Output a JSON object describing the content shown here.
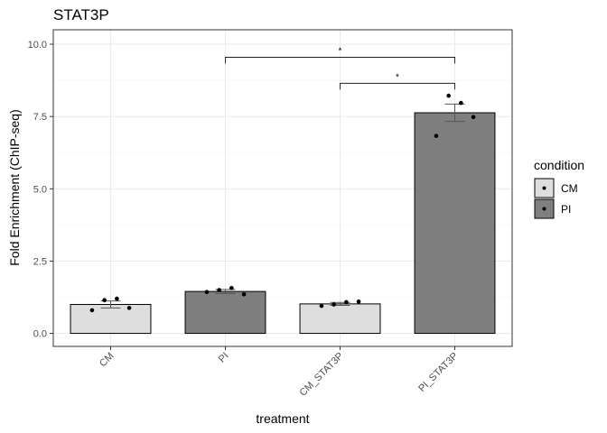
{
  "chart_data": {
    "type": "bar",
    "title": "STAT3P",
    "xlabel": "treatment",
    "ylabel": "Fold Enrichment (ChIP-seq)",
    "categories": [
      "CM",
      "PI",
      "CM_STAT3P",
      "PI_STAT3P"
    ],
    "condition": [
      "CM",
      "PI",
      "CM",
      "PI"
    ],
    "values": [
      1.0,
      1.45,
      1.02,
      7.63
    ],
    "error": [
      0.12,
      0.07,
      0.05,
      0.3
    ],
    "points": [
      [
        0.8,
        1.15,
        1.2,
        0.88
      ],
      [
        1.43,
        1.5,
        1.57,
        1.35
      ],
      [
        0.95,
        1.0,
        1.08,
        1.1
      ],
      [
        6.83,
        8.22,
        7.97,
        7.48
      ]
    ],
    "ylim": [
      -0.45,
      10.5
    ],
    "yticks": [
      0.0,
      2.5,
      5.0,
      7.5,
      10.0
    ],
    "ytick_labels": [
      "0.0",
      "2.5",
      "5.0",
      "7.5",
      "10.0"
    ],
    "grid": true,
    "legend": {
      "title": "condition",
      "placement": "right",
      "entries": [
        {
          "name": "CM",
          "color": "#dedede"
        },
        {
          "name": "PI",
          "color": "#7f7f7f"
        }
      ]
    },
    "significance": [
      {
        "from": "PI",
        "to": "PI_STAT3P",
        "y": 9.55,
        "label": "*"
      },
      {
        "from": "CM_STAT3P",
        "to": "PI_STAT3P",
        "y": 8.65,
        "label": "*"
      }
    ],
    "colors": {
      "CM": "#dedede",
      "PI": "#7f7f7f",
      "grid": "#ebebeb",
      "panel_border": "#333333"
    }
  }
}
